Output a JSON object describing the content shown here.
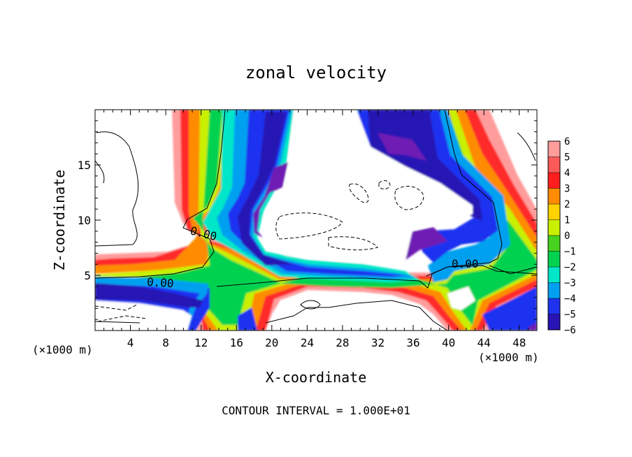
{
  "chart_data": {
    "type": "heatmap",
    "title": "zonal velocity",
    "xlabel": "X-coordinate",
    "ylabel": "Z-coordinate",
    "x_unit_label": "(×1000 m)",
    "y_unit_label": "(×1000 m)",
    "footer": "CONTOUR INTERVAL = 1.000E+01",
    "xlim": [
      0,
      50
    ],
    "ylim": [
      0,
      20
    ],
    "x_ticks": [
      4,
      8,
      12,
      16,
      20,
      24,
      28,
      32,
      36,
      40,
      44,
      48
    ],
    "y_ticks": [
      5,
      10,
      15
    ],
    "contour_labels": [
      "0.00",
      "0.00",
      "0.00"
    ],
    "colorbar": {
      "levels": [
        6,
        5,
        4,
        3,
        2,
        1,
        0,
        -1,
        -2,
        -3,
        -4,
        -5,
        -6
      ],
      "colors": [
        "#ff9c9c",
        "#ff5a5a",
        "#ff1e1e",
        "#ff8c00",
        "#ffd200",
        "#c8f000",
        "#46d21e",
        "#00d250",
        "#00e6c8",
        "#00a0f0",
        "#1e32f0",
        "#2814b4",
        "#6e1eb4"
      ]
    }
  }
}
